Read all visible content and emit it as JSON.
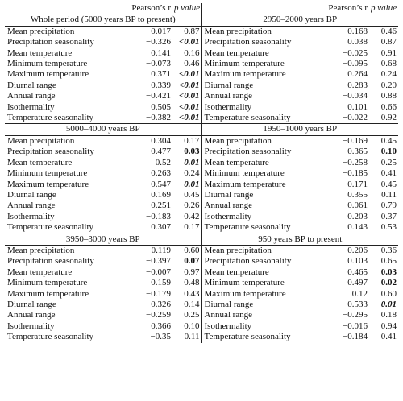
{
  "header": {
    "r_label": "Pearson’s r",
    "p_label": "p value"
  },
  "panels": [
    [
      {
        "title": "Whole period (5000 years BP to present)",
        "rows": [
          {
            "label": "Mean precipitation",
            "r": "0.017",
            "p": "0.87",
            "style": ""
          },
          {
            "label": "Precipitation seasonality",
            "r": "−0.326",
            "p": "<0.01",
            "style": "bi"
          },
          {
            "label": "Mean temperature",
            "r": "0.141",
            "p": "0.16",
            "style": ""
          },
          {
            "label": "Minimum temperature",
            "r": "−0.073",
            "p": "0.46",
            "style": ""
          },
          {
            "label": "Maximum temperature",
            "r": "0.371",
            "p": "<0.01",
            "style": "bi"
          },
          {
            "label": "Diurnal range",
            "r": "0.339",
            "p": "<0.01",
            "style": "bi"
          },
          {
            "label": "Annual range",
            "r": "−0.421",
            "p": "<0.01",
            "style": "bi"
          },
          {
            "label": "Isothermality",
            "r": "0.505",
            "p": "<0.01",
            "style": "bi"
          },
          {
            "label": "Temperature seasonality",
            "r": "−0.382",
            "p": "<0.01",
            "style": "bi"
          }
        ]
      },
      {
        "title": "2950–2000 years BP",
        "rows": [
          {
            "label": "Mean precipitation",
            "r": "−0.168",
            "p": "0.46",
            "style": ""
          },
          {
            "label": "Precipitation seasonality",
            "r": "0.038",
            "p": "0.87",
            "style": ""
          },
          {
            "label": "Mean temperature",
            "r": "−0.025",
            "p": "0.91",
            "style": ""
          },
          {
            "label": "Minimum temperature",
            "r": "−0.095",
            "p": "0.68",
            "style": ""
          },
          {
            "label": "Maximum temperature",
            "r": "0.264",
            "p": "0.24",
            "style": ""
          },
          {
            "label": "Diurnal range",
            "r": "0.283",
            "p": "0.20",
            "style": ""
          },
          {
            "label": "Annual range",
            "r": "−0.034",
            "p": "0.88",
            "style": ""
          },
          {
            "label": "Isothermality",
            "r": "0.101",
            "p": "0.66",
            "style": ""
          },
          {
            "label": "Temperature seasonality",
            "r": "−0.022",
            "p": "0.92",
            "style": ""
          }
        ]
      }
    ],
    [
      {
        "title": "5000–4000 years BP",
        "rows": [
          {
            "label": "Mean precipitation",
            "r": "0.304",
            "p": "0.17",
            "style": ""
          },
          {
            "label": "Precipitation seasonality",
            "r": "0.477",
            "p": "0.03",
            "style": "b"
          },
          {
            "label": "Mean temperature",
            "r": "0.52",
            "p": "0.01",
            "style": "bi"
          },
          {
            "label": "Minimum temperature",
            "r": "0.263",
            "p": "0.24",
            "style": ""
          },
          {
            "label": "Maximum temperature",
            "r": "0.547",
            "p": "0.01",
            "style": "bi"
          },
          {
            "label": "Diurnal range",
            "r": "0.169",
            "p": "0.45",
            "style": ""
          },
          {
            "label": "Annual range",
            "r": "0.251",
            "p": "0.26",
            "style": ""
          },
          {
            "label": "Isothermality",
            "r": "−0.183",
            "p": "0.42",
            "style": ""
          },
          {
            "label": "Temperature seasonality",
            "r": "0.307",
            "p": "0.17",
            "style": ""
          }
        ]
      },
      {
        "title": "1950–1000 years BP",
        "rows": [
          {
            "label": "Mean precipitation",
            "r": "−0.169",
            "p": "0.45",
            "style": ""
          },
          {
            "label": "Precipitation seasonality",
            "r": "−0.365",
            "p": "0.10",
            "style": "b"
          },
          {
            "label": "Mean temperature",
            "r": "−0.258",
            "p": "0.25",
            "style": ""
          },
          {
            "label": "Minimum temperature",
            "r": "−0.185",
            "p": "0.41",
            "style": ""
          },
          {
            "label": "Maximum temperature",
            "r": "0.171",
            "p": "0.45",
            "style": ""
          },
          {
            "label": "Diurnal range",
            "r": "0.355",
            "p": "0.11",
            "style": ""
          },
          {
            "label": "Annual range",
            "r": "−0.061",
            "p": "0.79",
            "style": ""
          },
          {
            "label": "Isothermality",
            "r": "0.203",
            "p": "0.37",
            "style": ""
          },
          {
            "label": "Temperature seasonality",
            "r": "0.143",
            "p": "0.53",
            "style": ""
          }
        ]
      }
    ],
    [
      {
        "title": "3950–3000 years BP",
        "rows": [
          {
            "label": "Mean precipitation",
            "r": "−0.119",
            "p": "0.60",
            "style": ""
          },
          {
            "label": "Precipitation seasonality",
            "r": "−0.397",
            "p": "0.07",
            "style": "b"
          },
          {
            "label": "Mean temperature",
            "r": "−0.007",
            "p": "0.97",
            "style": ""
          },
          {
            "label": "Minimum temperature",
            "r": "0.159",
            "p": "0.48",
            "style": ""
          },
          {
            "label": "Maximum temperature",
            "r": "−0.179",
            "p": "0.43",
            "style": ""
          },
          {
            "label": "Diurnal range",
            "r": "−0.326",
            "p": "0.14",
            "style": ""
          },
          {
            "label": "Annual range",
            "r": "−0.259",
            "p": "0.25",
            "style": ""
          },
          {
            "label": "Isothermality",
            "r": "0.366",
            "p": "0.10",
            "style": ""
          },
          {
            "label": "Temperature seasonality",
            "r": "−0.35",
            "p": "0.11",
            "style": ""
          }
        ]
      },
      {
        "title": "950 years BP to present",
        "rows": [
          {
            "label": "Mean precipitation",
            "r": "−0.206",
            "p": "0.36",
            "style": ""
          },
          {
            "label": "Precipitation seasonality",
            "r": "0.103",
            "p": "0.65",
            "style": ""
          },
          {
            "label": "Mean temperature",
            "r": "0.465",
            "p": "0.03",
            "style": "b"
          },
          {
            "label": "Minimum temperature",
            "r": "0.497",
            "p": "0.02",
            "style": "b"
          },
          {
            "label": "Maximum temperature",
            "r": "0.12",
            "p": "0.60",
            "style": ""
          },
          {
            "label": "Diurnal range",
            "r": "−0.533",
            "p": "0.01",
            "style": "bi"
          },
          {
            "label": "Annual range",
            "r": "−0.295",
            "p": "0.18",
            "style": ""
          },
          {
            "label": "Isothermality",
            "r": "−0.016",
            "p": "0.94",
            "style": ""
          },
          {
            "label": "Temperature seasonality",
            "r": "−0.184",
            "p": "0.41",
            "style": ""
          }
        ]
      }
    ]
  ]
}
